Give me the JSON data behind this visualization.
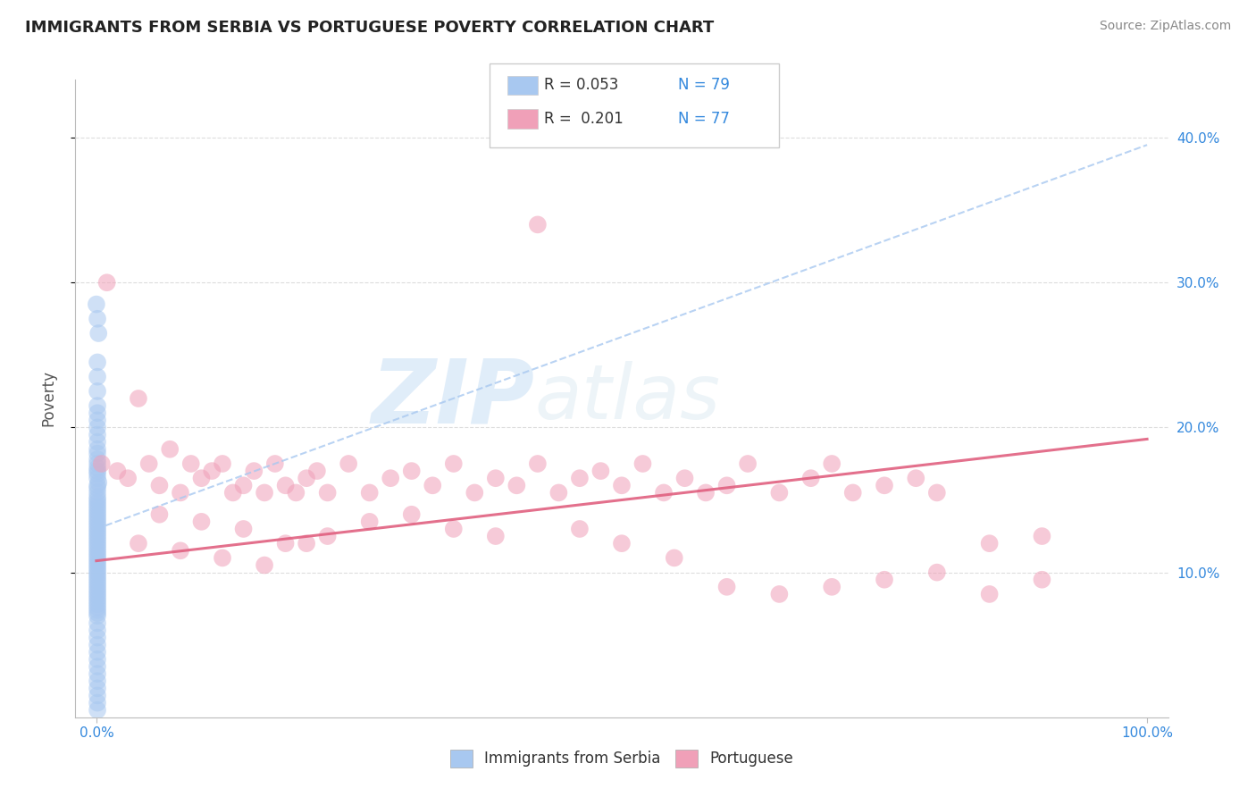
{
  "title": "IMMIGRANTS FROM SERBIA VS PORTUGUESE POVERTY CORRELATION CHART",
  "source_text": "Source: ZipAtlas.com",
  "ylabel": "Poverty",
  "watermark_zip": "ZIP",
  "watermark_atlas": "atlas",
  "xlim": [
    -0.02,
    1.02
  ],
  "ylim": [
    0.0,
    0.44
  ],
  "yticks_right": [
    0.1,
    0.2,
    0.3,
    0.4
  ],
  "yticklabels_right": [
    "10.0%",
    "20.0%",
    "30.0%",
    "40.0%"
  ],
  "legend_r1": "R = 0.053",
  "legend_n1": "N = 79",
  "legend_r2": "R =  0.201",
  "legend_n2": "N = 77",
  "color_blue": "#a8c8f0",
  "color_pink": "#f0a0b8",
  "color_trendline_blue": "#a8c8f0",
  "color_trendline_pink": "#e06080",
  "grid_color": "#dddddd",
  "background_color": "#ffffff",
  "blue_trend": [
    0.13,
    0.395
  ],
  "pink_trend": [
    0.108,
    0.192
  ],
  "serbia_x": [
    0.0,
    0.001,
    0.002,
    0.001,
    0.001,
    0.001,
    0.001,
    0.001,
    0.001,
    0.001,
    0.001,
    0.001,
    0.001,
    0.001,
    0.001,
    0.001,
    0.001,
    0.001,
    0.001,
    0.001,
    0.002,
    0.001,
    0.001,
    0.001,
    0.001,
    0.001,
    0.001,
    0.001,
    0.001,
    0.001,
    0.001,
    0.001,
    0.001,
    0.001,
    0.001,
    0.001,
    0.001,
    0.001,
    0.001,
    0.001,
    0.001,
    0.001,
    0.001,
    0.001,
    0.001,
    0.001,
    0.001,
    0.001,
    0.001,
    0.001,
    0.001,
    0.001,
    0.001,
    0.001,
    0.001,
    0.001,
    0.001,
    0.001,
    0.001,
    0.001,
    0.001,
    0.001,
    0.001,
    0.001,
    0.001,
    0.001,
    0.001,
    0.001,
    0.001,
    0.001,
    0.001,
    0.001,
    0.001,
    0.001,
    0.001,
    0.001,
    0.001,
    0.001,
    0.001
  ],
  "serbia_y": [
    0.285,
    0.275,
    0.265,
    0.245,
    0.235,
    0.225,
    0.215,
    0.21,
    0.205,
    0.2,
    0.195,
    0.19,
    0.185,
    0.182,
    0.178,
    0.175,
    0.172,
    0.17,
    0.168,
    0.165,
    0.162,
    0.16,
    0.158,
    0.155,
    0.152,
    0.15,
    0.148,
    0.146,
    0.144,
    0.142,
    0.14,
    0.138,
    0.136,
    0.134,
    0.132,
    0.13,
    0.128,
    0.126,
    0.124,
    0.122,
    0.12,
    0.118,
    0.116,
    0.114,
    0.112,
    0.11,
    0.108,
    0.106,
    0.104,
    0.102,
    0.1,
    0.098,
    0.096,
    0.094,
    0.092,
    0.09,
    0.088,
    0.086,
    0.084,
    0.082,
    0.08,
    0.078,
    0.076,
    0.074,
    0.072,
    0.07,
    0.065,
    0.06,
    0.055,
    0.05,
    0.045,
    0.04,
    0.035,
    0.03,
    0.025,
    0.02,
    0.015,
    0.01,
    0.005
  ],
  "portuguese_x": [
    0.005,
    0.01,
    0.02,
    0.03,
    0.04,
    0.05,
    0.06,
    0.07,
    0.08,
    0.09,
    0.1,
    0.11,
    0.12,
    0.13,
    0.14,
    0.15,
    0.16,
    0.17,
    0.18,
    0.19,
    0.2,
    0.21,
    0.22,
    0.24,
    0.26,
    0.28,
    0.3,
    0.32,
    0.34,
    0.36,
    0.38,
    0.4,
    0.42,
    0.44,
    0.46,
    0.48,
    0.5,
    0.52,
    0.54,
    0.56,
    0.58,
    0.6,
    0.62,
    0.65,
    0.68,
    0.7,
    0.72,
    0.75,
    0.78,
    0.8,
    0.85,
    0.9,
    0.06,
    0.1,
    0.14,
    0.18,
    0.22,
    0.26,
    0.3,
    0.34,
    0.38,
    0.42,
    0.46,
    0.5,
    0.55,
    0.6,
    0.65,
    0.7,
    0.75,
    0.8,
    0.85,
    0.9,
    0.04,
    0.08,
    0.12,
    0.16,
    0.2
  ],
  "portuguese_y": [
    0.175,
    0.3,
    0.17,
    0.165,
    0.22,
    0.175,
    0.16,
    0.185,
    0.155,
    0.175,
    0.165,
    0.17,
    0.175,
    0.155,
    0.16,
    0.17,
    0.155,
    0.175,
    0.16,
    0.155,
    0.165,
    0.17,
    0.155,
    0.175,
    0.155,
    0.165,
    0.17,
    0.16,
    0.175,
    0.155,
    0.165,
    0.16,
    0.175,
    0.155,
    0.165,
    0.17,
    0.16,
    0.175,
    0.155,
    0.165,
    0.155,
    0.16,
    0.175,
    0.155,
    0.165,
    0.175,
    0.155,
    0.16,
    0.165,
    0.155,
    0.12,
    0.125,
    0.14,
    0.135,
    0.13,
    0.12,
    0.125,
    0.135,
    0.14,
    0.13,
    0.125,
    0.34,
    0.13,
    0.12,
    0.11,
    0.09,
    0.085,
    0.09,
    0.095,
    0.1,
    0.085,
    0.095,
    0.12,
    0.115,
    0.11,
    0.105,
    0.12
  ]
}
